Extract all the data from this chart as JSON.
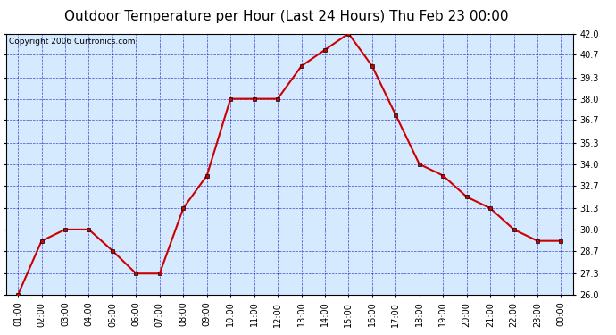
{
  "title": "Outdoor Temperature per Hour (Last 24 Hours) Thu Feb 23 00:00",
  "copyright": "Copyright 2006 Curtronics.com",
  "hours": [
    "01:00",
    "02:00",
    "03:00",
    "04:00",
    "05:00",
    "06:00",
    "07:00",
    "08:00",
    "09:00",
    "10:00",
    "11:00",
    "12:00",
    "13:00",
    "14:00",
    "15:00",
    "16:00",
    "17:00",
    "18:00",
    "19:00",
    "20:00",
    "21:00",
    "22:00",
    "23:00",
    "00:00"
  ],
  "temps": [
    26.0,
    29.3,
    30.0,
    30.0,
    28.7,
    27.3,
    27.3,
    31.3,
    33.3,
    38.0,
    38.0,
    38.0,
    40.0,
    41.0,
    42.0,
    40.0,
    37.0,
    34.0,
    33.3,
    32.0,
    31.3,
    30.0,
    29.3,
    29.3
  ],
  "ylim": [
    26.0,
    42.0
  ],
  "yticks": [
    26.0,
    27.3,
    28.7,
    30.0,
    31.3,
    32.7,
    34.0,
    35.3,
    36.7,
    38.0,
    39.3,
    40.7,
    42.0
  ],
  "line_color": "#cc0000",
  "marker_color": "#000000",
  "bg_color": "#d6eaff",
  "grid_color": "#0000bb",
  "axis_bg": "#ffffff",
  "title_fontsize": 11,
  "copyright_fontsize": 6.5
}
